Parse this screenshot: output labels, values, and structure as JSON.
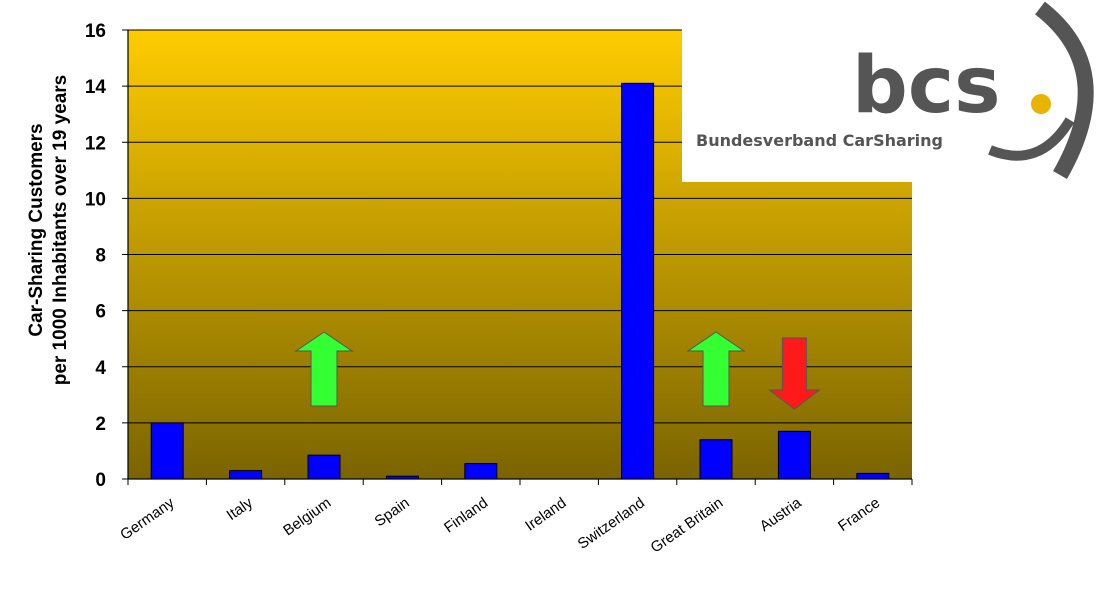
{
  "chart_data": {
    "type": "bar",
    "ylabel_line1": "Car-Sharing Customers",
    "ylabel_line2": "per 1000 Inhabitants over 19 years",
    "categories": [
      "Germany",
      "Italy",
      "Belgium",
      "Spain",
      "Finland",
      "Ireland",
      "Switzerland",
      "Great Britain",
      "Austria",
      "France"
    ],
    "values": [
      2.0,
      0.3,
      0.85,
      0.1,
      0.55,
      0.0,
      14.1,
      1.4,
      1.7,
      0.2
    ],
    "ylim": [
      0,
      16
    ],
    "yticks": [
      0,
      2,
      4,
      6,
      8,
      10,
      12,
      14,
      16
    ],
    "grid": true,
    "bar_color": "#0000ff",
    "background_gradient": [
      "#ffcc00",
      "#7a6400"
    ],
    "trend_arrows": [
      {
        "category": "Belgium",
        "direction": "up",
        "color": "#33ff33"
      },
      {
        "category": "Great Britain",
        "direction": "up",
        "color": "#33ff33"
      },
      {
        "category": "Austria",
        "direction": "down",
        "color": "#ff1a1a"
      }
    ]
  },
  "logo": {
    "name": "bcs",
    "dot": ".",
    "tagline": "Bundesverband CarSharing",
    "dot_color": "#e8b400"
  }
}
